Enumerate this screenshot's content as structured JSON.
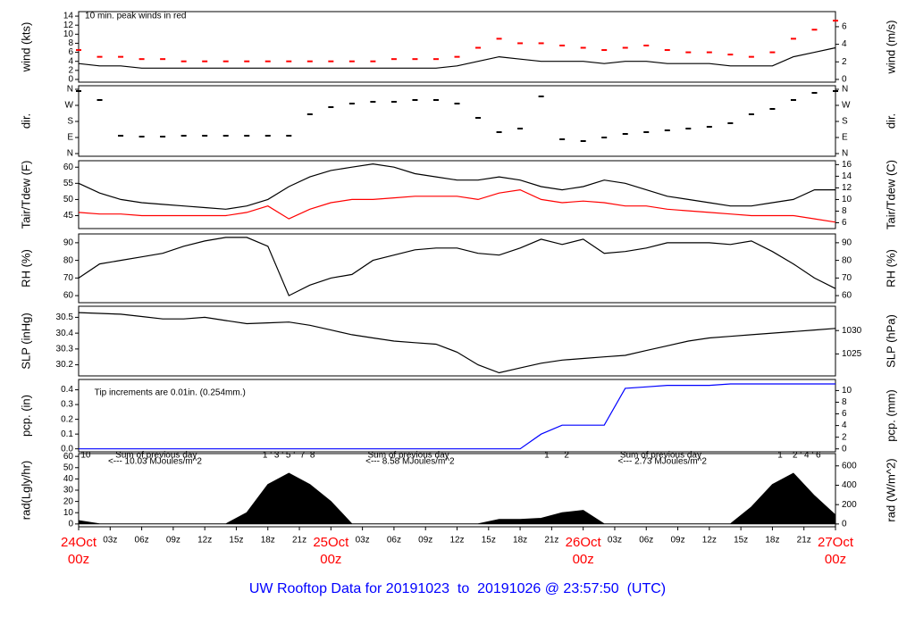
{
  "title": "UW Rooftop Data for 20191023  to  20191026 @ 23:57:50  (UTC)",
  "x": [
    0,
    2,
    4,
    6,
    8,
    10,
    12,
    14,
    16,
    18,
    20,
    22,
    24,
    26,
    28,
    30,
    32,
    34,
    36,
    38,
    40,
    42,
    44,
    46,
    48,
    50,
    52,
    54,
    56,
    58,
    60,
    62,
    64,
    66,
    68,
    70,
    72
  ],
  "xlim": [
    0,
    72
  ],
  "xticks": [
    {
      "value": 0,
      "label": "00z",
      "date": "24Oct"
    },
    {
      "value": 3,
      "label": "03z"
    },
    {
      "value": 6,
      "label": "06z"
    },
    {
      "value": 9,
      "label": "09z"
    },
    {
      "value": 12,
      "label": "12z"
    },
    {
      "value": 15,
      "label": "15z"
    },
    {
      "value": 18,
      "label": "18z"
    },
    {
      "value": 21,
      "label": "21z"
    },
    {
      "value": 24,
      "label": "00z",
      "date": "25Oct"
    },
    {
      "value": 27,
      "label": "03z"
    },
    {
      "value": 30,
      "label": "06z"
    },
    {
      "value": 33,
      "label": "09z"
    },
    {
      "value": 36,
      "label": "12z"
    },
    {
      "value": 39,
      "label": "15z"
    },
    {
      "value": 42,
      "label": "18z"
    },
    {
      "value": 45,
      "label": "21z"
    },
    {
      "value": 48,
      "label": "00z",
      "date": "26Oct"
    },
    {
      "value": 51,
      "label": "03z"
    },
    {
      "value": 54,
      "label": "06z"
    },
    {
      "value": 57,
      "label": "09z"
    },
    {
      "value": 60,
      "label": "12z"
    },
    {
      "value": 63,
      "label": "15z"
    },
    {
      "value": 66,
      "label": "18z"
    },
    {
      "value": 69,
      "label": "21z"
    },
    {
      "value": 72,
      "label": "00z",
      "date": "27Oct"
    }
  ],
  "chart_data": [
    {
      "type": "line",
      "ylabel": "wind (kts)",
      "y2label": "wind (m/s)",
      "ylim": [
        -0.6,
        15
      ],
      "yticks": [
        0,
        2,
        4,
        6,
        8,
        10,
        12,
        14
      ],
      "y2lim": [
        -0.31,
        7.72
      ],
      "y2ticks": [
        0,
        2,
        4,
        6
      ],
      "annotations": [
        {
          "x": 0.6,
          "y": 14,
          "text": "10 min. peak winds in red",
          "color": "#ff0000"
        }
      ],
      "series": [
        {
          "color": "#000000",
          "values": [
            3.5,
            3,
            3,
            2.5,
            2.5,
            2.5,
            2.5,
            2.5,
            2.5,
            2.5,
            2.5,
            2.5,
            2.5,
            2.5,
            2.5,
            2.5,
            2.5,
            2.5,
            3,
            4,
            5,
            4.5,
            4,
            4,
            4,
            3.5,
            4,
            4,
            3.5,
            3.5,
            3.5,
            3,
            3,
            3,
            5,
            6,
            7
          ]
        },
        {
          "type": "scatter",
          "color": "#ff0000",
          "values": [
            6.5,
            5,
            5,
            4.5,
            4.5,
            4,
            4,
            4,
            4,
            4,
            4,
            4,
            4,
            4,
            4,
            4.5,
            4.5,
            4.5,
            5,
            7,
            9,
            8,
            8,
            7.5,
            7,
            6.5,
            7,
            7.5,
            6.5,
            6,
            6,
            5.5,
            5,
            6,
            9,
            11,
            13
          ]
        }
      ]
    },
    {
      "type": "scatter",
      "ylabel": "dir.",
      "y2label": "dir.",
      "ylim": [
        -15,
        380
      ],
      "yticks": [
        {
          "value": 0,
          "label": "N"
        },
        {
          "value": 90,
          "label": "E"
        },
        {
          "value": 180,
          "label": "S"
        },
        {
          "value": 270,
          "label": "W"
        },
        {
          "value": 360,
          "label": "N"
        }
      ],
      "y2lim": [
        -15,
        380
      ],
      "y2ticks": [
        {
          "value": 0,
          "label": "N"
        },
        {
          "value": 90,
          "label": "E"
        },
        {
          "value": 180,
          "label": "S"
        },
        {
          "value": 270,
          "label": "W"
        },
        {
          "value": 360,
          "label": "N"
        }
      ],
      "series": [
        {
          "color": "#000000",
          "values": [
            350,
            300,
            100,
            95,
            95,
            100,
            100,
            100,
            100,
            100,
            100,
            220,
            260,
            280,
            290,
            290,
            300,
            300,
            280,
            200,
            120,
            140,
            320,
            80,
            70,
            90,
            110,
            120,
            130,
            140,
            150,
            170,
            220,
            250,
            300,
            340,
            350
          ]
        }
      ]
    },
    {
      "type": "line",
      "ylabel": "Tair/Tdew (F)",
      "y2label": "Tair/Tdew (C)",
      "ylim": [
        41,
        62
      ],
      "yticks": [
        45,
        50,
        55,
        60
      ],
      "y2lim": [
        5,
        16.67
      ],
      "y2ticks": [
        6,
        8,
        10,
        12,
        14,
        16
      ],
      "series": [
        {
          "color": "#000000",
          "values": [
            55,
            52,
            50,
            49,
            48.5,
            48,
            47.5,
            47,
            48,
            50,
            54,
            57,
            59,
            60,
            61,
            60,
            58,
            57,
            56,
            56,
            57,
            56,
            54,
            53,
            54,
            56,
            55,
            53,
            51,
            50,
            49,
            48,
            48,
            49,
            50,
            53,
            53
          ]
        },
        {
          "color": "#ff0000",
          "values": [
            46,
            45.5,
            45.5,
            45,
            45,
            45,
            45,
            45,
            46,
            48,
            44,
            47,
            49,
            50,
            50,
            50.5,
            51,
            51,
            51,
            50,
            52,
            53,
            50,
            49,
            49.5,
            49,
            48,
            48,
            47,
            46.5,
            46,
            45.5,
            45,
            45,
            45,
            44,
            43
          ]
        }
      ]
    },
    {
      "type": "line",
      "ylabel": "RH (%)",
      "y2label": "RH (%)",
      "ylim": [
        56,
        95
      ],
      "yticks": [
        60,
        70,
        80,
        90
      ],
      "y2lim": [
        56,
        95
      ],
      "y2ticks": [
        60,
        70,
        80,
        90
      ],
      "series": [
        {
          "color": "#000000",
          "values": [
            70,
            78,
            80,
            82,
            84,
            88,
            91,
            93,
            93,
            88,
            60,
            66,
            70,
            72,
            80,
            83,
            86,
            87,
            87,
            84,
            83,
            87,
            92,
            89,
            92,
            84,
            85,
            87,
            90,
            90,
            90,
            89,
            91,
            85,
            78,
            70,
            64
          ]
        }
      ]
    },
    {
      "type": "line",
      "ylabel": "SLP (inHg)",
      "y2label": "SLP (hPa)",
      "ylim": [
        30.13,
        30.57
      ],
      "yticks": [
        30.2,
        30.3,
        30.4,
        30.5
      ],
      "y2lim": [
        1020.3,
        1035.2
      ],
      "y2ticks": [
        1025,
        1030
      ],
      "series": [
        {
          "color": "#000000",
          "values": [
            30.53,
            30.525,
            30.52,
            30.505,
            30.49,
            30.49,
            30.5,
            30.48,
            30.46,
            30.465,
            30.47,
            30.45,
            30.42,
            30.39,
            30.37,
            30.35,
            30.34,
            30.33,
            30.28,
            30.2,
            30.15,
            30.18,
            30.21,
            30.23,
            30.24,
            30.25,
            30.26,
            30.29,
            30.32,
            30.35,
            30.37,
            30.38,
            30.39,
            30.4,
            30.41,
            30.42,
            30.43
          ]
        }
      ]
    },
    {
      "type": "line",
      "ylabel": "pcp. (in)",
      "y2label": "pcp. (mm)",
      "ylim": [
        -0.02,
        0.47
      ],
      "yticks": [
        {
          "value": 0,
          "label": "0.0"
        },
        0.1,
        0.2,
        0.3,
        0.4
      ],
      "y2lim": [
        -0.5,
        11.9
      ],
      "y2ticks": [
        0,
        2,
        4,
        6,
        8,
        10
      ],
      "annotations": [
        {
          "x": 1.5,
          "y": 0.38,
          "text": "Tip increments are 0.01in. (0.254mm.)",
          "color": "#0000ff"
        }
      ],
      "series": [
        {
          "color": "#0000ff",
          "values": [
            0,
            0,
            0,
            0,
            0,
            0,
            0,
            0,
            0,
            0,
            0,
            0,
            0,
            0,
            0,
            0,
            0,
            0,
            0,
            0,
            0,
            0,
            0.1,
            0.16,
            0.16,
            0.16,
            0.41,
            0.42,
            0.43,
            0.43,
            0.43,
            0.44,
            0.44,
            0.44,
            0.44,
            0.44,
            0.44
          ]
        }
      ]
    },
    {
      "type": "area",
      "ylabel": "rad(Lgly/hr)",
      "y2label": "rad (W/m^2)",
      "ylim": [
        -2.5,
        62.5
      ],
      "yticks": [
        0,
        10,
        20,
        30,
        40,
        50,
        60
      ],
      "y2lim": [
        -29,
        727
      ],
      "y2ticks": [
        0,
        200,
        400,
        600
      ],
      "annotations": [
        {
          "x": 0.2,
          "y": 61,
          "text": "10",
          "color": "#a020c0"
        },
        {
          "x": 3.5,
          "y": 61,
          "text": "Sum of previous day",
          "color": "#a020c0"
        },
        {
          "x": 2.8,
          "y": 55.5,
          "text": "<--- 10.03 MJoules/m^2",
          "color": "#a020c0"
        },
        {
          "x": 17.5,
          "y": 61,
          "text": "1 ' 3 ' 5 '  7  8",
          "color": "#a020c0"
        },
        {
          "x": 27.5,
          "y": 61,
          "text": "Sum of previous day",
          "color": "#a020c0"
        },
        {
          "x": 27.3,
          "y": 55.5,
          "text": "<--- 8.58 MJoules/m^2",
          "color": "#a020c0"
        },
        {
          "x": 44.3,
          "y": 61,
          "text": "1      2",
          "color": "#a020c0"
        },
        {
          "x": 51.5,
          "y": 61,
          "text": "Sum of previous day",
          "color": "#a020c0"
        },
        {
          "x": 51.3,
          "y": 55.5,
          "text": "<--- 2.73 MJoules/m^2",
          "color": "#a020c0"
        },
        {
          "x": 66.5,
          "y": 61,
          "text": "1    2 ' 4 ' 6",
          "color": "#a020c0"
        }
      ],
      "series": [
        {
          "color": "#000000",
          "values": [
            3,
            0,
            0,
            0,
            0,
            0,
            0,
            0,
            10,
            35,
            45,
            35,
            20,
            0,
            0,
            0,
            0,
            0,
            0,
            0,
            4,
            4,
            5,
            10,
            12,
            0,
            0,
            0,
            0,
            0,
            0,
            0,
            15,
            35,
            45,
            25,
            8
          ]
        }
      ]
    }
  ]
}
